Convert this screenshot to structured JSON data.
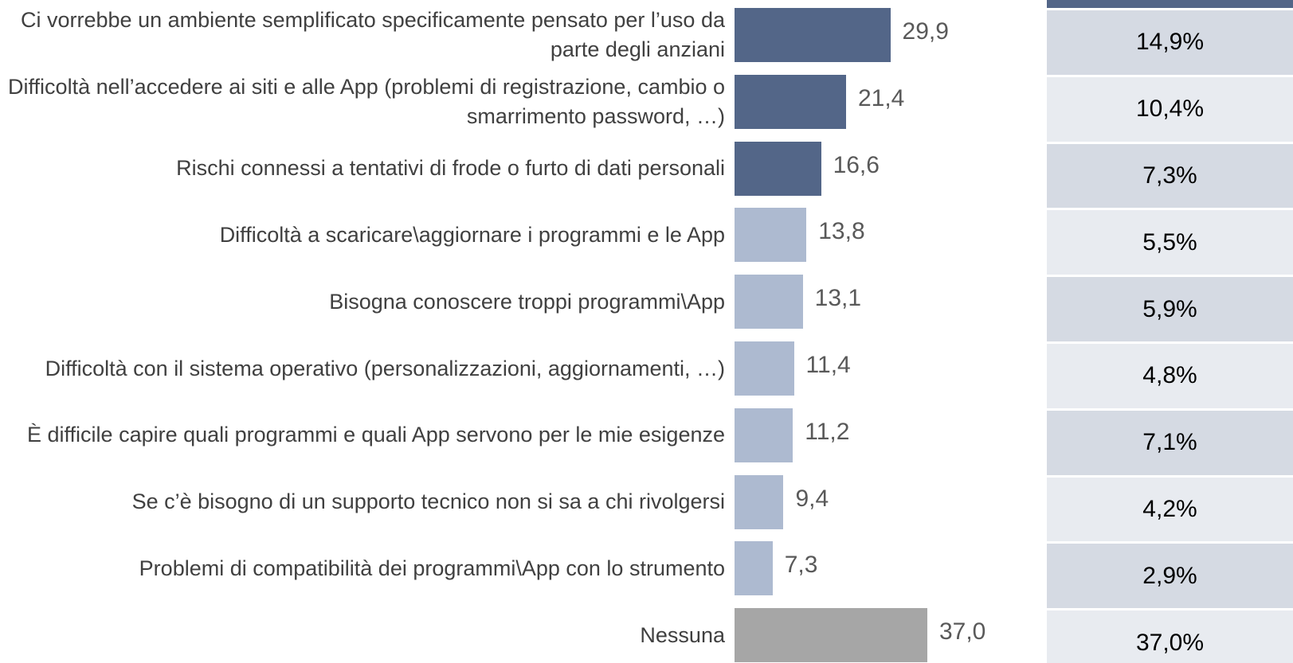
{
  "chart_data": {
    "type": "bar",
    "orientation": "horizontal",
    "categories": [
      "Ci vorrebbe un ambiente semplificato specificamente pensato per l’uso da parte degli anziani",
      "Difficoltà nell’accedere ai siti e alle App (problemi di registrazione, cambio o smarrimento password, …)",
      "Rischi connessi a tentativi di frode o furto di dati personali",
      "Difficoltà a scaricare\\aggiornare i programmi e le App",
      "Bisogna conoscere troppi programmi\\App",
      "Difficoltà con il sistema operativo (personalizzazioni, aggiornamenti, …)",
      "È difficile capire quali programmi e quali App servono per le mie esigenze",
      "Se c’è bisogno di un supporto tecnico non si sa a chi rivolgersi",
      "Problemi di compatibilità dei programmi\\App con lo strumento",
      "Nessuna"
    ],
    "values": [
      29.9,
      21.4,
      16.6,
      13.8,
      13.1,
      11.4,
      11.2,
      9.4,
      7.3,
      37.0
    ],
    "value_labels": [
      "29,9",
      "21,4",
      "16,6",
      "13,8",
      "13,1",
      "11,4",
      "11,2",
      "9,4",
      "7,3",
      "37,0"
    ],
    "colors": [
      "#536688",
      "#536688",
      "#536688",
      "#adbad0",
      "#adbad0",
      "#adbad0",
      "#adbad0",
      "#adbad0",
      "#adbad0",
      "#a6a6a6"
    ],
    "table": {
      "values": [
        14.9,
        10.4,
        7.3,
        5.5,
        5.9,
        4.8,
        7.1,
        4.2,
        2.9,
        37.0
      ],
      "value_labels": [
        "14,9%",
        "10,4%",
        "7,3%",
        "5,5%",
        "5,9%",
        "4,8%",
        "7,1%",
        "4,2%",
        "2,9%",
        "37,0%"
      ],
      "header_color": "#536688",
      "row_colors": [
        "#d5dae3",
        "#e8ebf0"
      ]
    }
  }
}
